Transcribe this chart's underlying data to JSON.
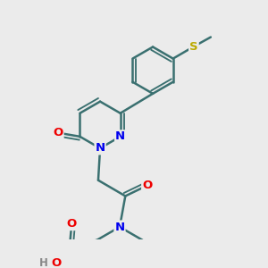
{
  "bg_color": "#ebebeb",
  "bond_color": "#3a7070",
  "bond_width": 1.8,
  "atom_colors": {
    "N": "#0000ee",
    "O": "#ee0000",
    "S": "#bbaa00",
    "H": "#888888",
    "C": "#000000"
  },
  "font_size": 9.5,
  "fig_size": [
    3.0,
    3.0
  ],
  "dpi": 100
}
